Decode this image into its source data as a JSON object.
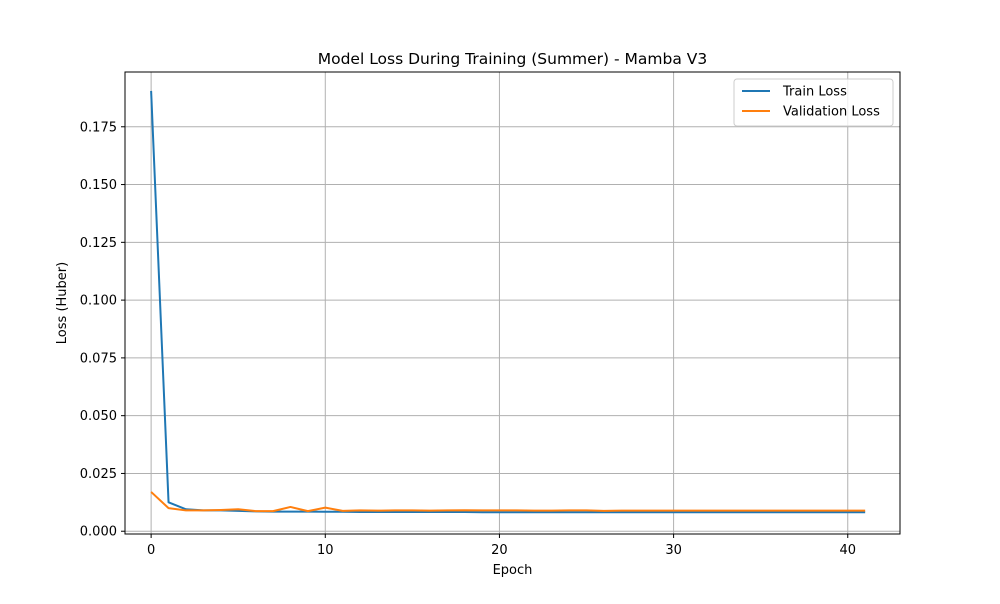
{
  "chart_data": {
    "type": "line",
    "title": "Model Loss During Training (Summer) - Mamba V3",
    "xlabel": "Epoch",
    "ylabel": "Loss (Huber)",
    "xlim": [
      -1.5,
      43
    ],
    "ylim": [
      -0.0012,
      0.1987
    ],
    "xticks": [
      0,
      10,
      20,
      30,
      40
    ],
    "yticks": [
      0.0,
      0.025,
      0.05,
      0.075,
      0.1,
      0.125,
      0.15,
      0.175
    ],
    "xtick_labels": [
      "0",
      "10",
      "20",
      "30",
      "40"
    ],
    "ytick_labels": [
      "0.000",
      "0.025",
      "0.050",
      "0.075",
      "0.100",
      "0.125",
      "0.150",
      "0.175"
    ],
    "grid": true,
    "legend_position": "top-right",
    "x": [
      0,
      1,
      2,
      3,
      4,
      5,
      6,
      7,
      8,
      9,
      10,
      11,
      12,
      13,
      14,
      15,
      16,
      17,
      18,
      19,
      20,
      21,
      22,
      23,
      24,
      25,
      26,
      27,
      28,
      29,
      30,
      31,
      32,
      33,
      34,
      35,
      36,
      37,
      38,
      39,
      40,
      41
    ],
    "series": [
      {
        "name": "Train Loss",
        "color": "#1f77b4",
        "values": [
          0.1905,
          0.0125,
          0.0095,
          0.009,
          0.009,
          0.0088,
          0.0086,
          0.0085,
          0.0085,
          0.0085,
          0.0084,
          0.0084,
          0.0083,
          0.0083,
          0.0083,
          0.0083,
          0.0083,
          0.0083,
          0.0083,
          0.0082,
          0.0082,
          0.0082,
          0.0082,
          0.0082,
          0.0082,
          0.0082,
          0.0082,
          0.0082,
          0.0082,
          0.0082,
          0.0082,
          0.0082,
          0.0082,
          0.0082,
          0.0082,
          0.0082,
          0.0082,
          0.0082,
          0.0082,
          0.0082,
          0.0082,
          0.0082
        ]
      },
      {
        "name": "Validation Loss",
        "color": "#ff7f0e",
        "values": [
          0.017,
          0.01,
          0.009,
          0.009,
          0.0092,
          0.0095,
          0.0087,
          0.0087,
          0.0105,
          0.0087,
          0.0102,
          0.0088,
          0.009,
          0.0089,
          0.009,
          0.009,
          0.0089,
          0.009,
          0.0091,
          0.009,
          0.009,
          0.009,
          0.0089,
          0.0089,
          0.009,
          0.009,
          0.0088,
          0.0089,
          0.0089,
          0.0089,
          0.0089,
          0.0089,
          0.0089,
          0.0089,
          0.0089,
          0.0089,
          0.0089,
          0.0089,
          0.0089,
          0.0089,
          0.0089,
          0.0089
        ]
      }
    ]
  }
}
